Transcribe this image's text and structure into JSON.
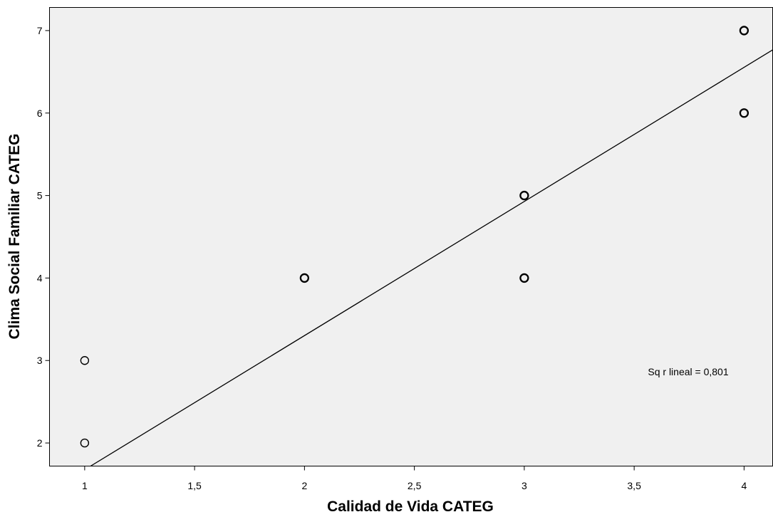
{
  "chart_data": {
    "type": "scatter",
    "title": "",
    "xlabel": "Calidad de Vida CATEG",
    "ylabel": "Clima Social Familiar CATEG",
    "xlim": [
      0.84,
      4.13
    ],
    "ylim": [
      1.72,
      7.28
    ],
    "x_ticks": [
      1,
      1.5,
      2,
      2.5,
      3,
      3.5,
      4
    ],
    "x_tick_labels": [
      "1",
      "1,5",
      "2",
      "2,5",
      "3",
      "3,5",
      "4"
    ],
    "y_ticks": [
      2,
      3,
      4,
      5,
      6,
      7
    ],
    "y_tick_labels": [
      "2",
      "3",
      "4",
      "5",
      "6",
      "7"
    ],
    "grid": false,
    "plot_background": "#f0f0f0",
    "marker_color": "#000000",
    "points": [
      {
        "x": 1,
        "y": 2
      },
      {
        "x": 1,
        "y": 3
      },
      {
        "x": 2,
        "y": 4
      },
      {
        "x": 3,
        "y": 4
      },
      {
        "x": 3,
        "y": 5
      },
      {
        "x": 4,
        "y": 6
      },
      {
        "x": 4,
        "y": 7
      }
    ],
    "fit_line": {
      "type": "linear",
      "intercept": 0.05,
      "slope": 1.626
    },
    "annotation": "Sq r lineal = 0,801"
  }
}
